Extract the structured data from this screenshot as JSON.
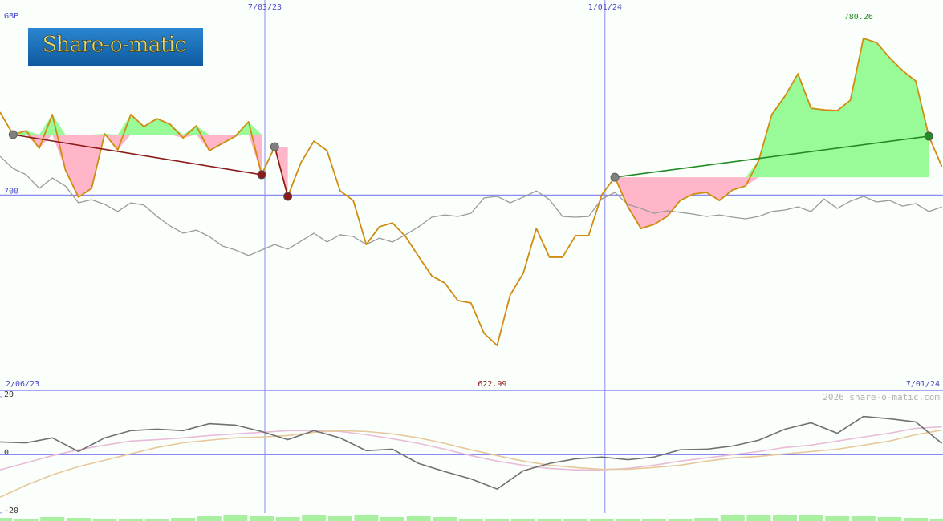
{
  "logo": "Share-o-matic",
  "credit": "2026 share-o-matic.com",
  "chart_data": [
    {
      "type": "line",
      "ylabel": "GBP",
      "categories": [
        "2/06/23",
        null,
        null,
        null,
        null,
        null,
        null,
        null,
        null,
        null,
        null,
        null,
        null,
        null,
        null,
        null,
        null,
        null,
        null,
        null,
        "7/03/23",
        null,
        null,
        null,
        null,
        null,
        null,
        null,
        null,
        null,
        null,
        null,
        null,
        null,
        null,
        null,
        null,
        null,
        null,
        null,
        null,
        null,
        null,
        null,
        null,
        null,
        "1/01/24",
        null,
        null,
        null,
        null,
        null,
        null,
        null,
        null,
        null,
        null,
        null,
        null,
        null,
        null,
        null,
        null,
        null,
        null,
        null,
        null,
        null,
        null,
        null,
        null,
        null,
        "7/01/24"
      ],
      "series": [
        {
          "color": "#d08c10",
          "values": [
            742.5,
            731.0,
            733.0,
            724.0,
            741.3,
            712.9,
            699.0,
            703.5,
            731.4,
            723.2,
            741.3,
            735.1,
            739.2,
            736.3,
            729.3,
            735.5,
            722.8,
            726.5,
            730.2,
            737.6,
            710.5,
            724.8,
            699.4,
            716.6,
            727.7,
            722.8,
            702.2,
            697.3,
            674.7,
            683.8,
            685.8,
            678.8,
            668.6,
            658.7,
            655.0,
            646.0,
            644.8,
            629.2,
            622.99,
            648.9,
            660.0,
            682.9,
            668.2,
            668.2,
            679.3,
            679.3,
            700.2,
            709.2,
            694.0,
            682.9,
            685.0,
            689.1,
            697.3,
            700.6,
            701.4,
            697.3,
            702.7,
            704.7,
            717.8,
            741.3,
            750.7,
            762.2,
            744.5,
            743.7,
            743.3,
            748.6,
            780.26,
            778.2,
            770.4,
            763.8,
            758.5,
            730.2,
            714.6
          ]
        },
        {
          "color": "#9a9a9a",
          "values": [
            719.9,
            713.7,
            710.5,
            703.5,
            708.8,
            704.7,
            696.1,
            697.7,
            695.3,
            691.6,
            696.1,
            694.9,
            689.1,
            684.2,
            680.5,
            682.1,
            678.8,
            673.9,
            671.9,
            669.0,
            671.9,
            674.7,
            672.3,
            676.4,
            680.5,
            676.0,
            679.7,
            678.8,
            674.7,
            678.0,
            676.0,
            679.7,
            683.8,
            688.7,
            689.9,
            689.1,
            690.7,
            698.6,
            699.4,
            696.1,
            699.0,
            702.2,
            697.7,
            689.1,
            688.7,
            689.1,
            698.1,
            701.4,
            695.3,
            693.2,
            690.7,
            692.0,
            691.2,
            690.3,
            689.1,
            689.9,
            688.7,
            687.9,
            689.1,
            691.6,
            692.4,
            694.0,
            691.6,
            698.1,
            693.2,
            696.9,
            699.4,
            696.5,
            697.3,
            694.4,
            695.7,
            691.6,
            694.0
          ]
        }
      ],
      "ylim": [
        600,
        800
      ],
      "yticks": [
        700
      ],
      "trades": [
        {
          "entry": 1,
          "exit": 20,
          "color": "#8b1a1a"
        },
        {
          "entry": 21,
          "exit": 22,
          "color": "#8b1a1a"
        },
        {
          "entry": 47,
          "exit": 71,
          "color": "#228b22"
        }
      ],
      "gain_color": "#98fb98",
      "loss_color": "#ffb6c8",
      "annotations": [
        {
          "index": 66,
          "text": "780.26",
          "color": "#228b22"
        },
        {
          "index": 38,
          "text": "622.99",
          "color": "#8b1a1a"
        }
      ]
    },
    {
      "type": "line",
      "x": [
        0,
        2,
        4,
        6,
        8,
        10,
        12,
        14,
        16,
        18,
        20,
        22,
        24,
        26,
        28,
        30,
        32,
        34,
        36,
        38,
        40,
        42,
        44,
        46,
        48,
        50,
        52,
        54,
        56,
        58,
        60,
        62,
        64,
        66,
        68,
        70,
        72
      ],
      "xlim": [
        0,
        72
      ],
      "ylim": [
        -22.8,
        21.9
      ],
      "yticks": [
        -20,
        0,
        20
      ],
      "series": [
        {
          "color": "#e8bcd8",
          "values": [
            -5.2,
            -2.8,
            -0.3,
            1.7,
            3.3,
            4.7,
            5.2,
            5.8,
            6.6,
            7.2,
            7.7,
            8.3,
            8.3,
            8.0,
            6.9,
            5.5,
            3.9,
            1.9,
            -0.3,
            -2.2,
            -3.6,
            -4.7,
            -5.2,
            -5.2,
            -4.7,
            -3.6,
            -2.2,
            -1.1,
            0,
            1.1,
            2.5,
            3.3,
            4.7,
            6.1,
            7.4,
            9.1,
            9.6
          ]
        },
        {
          "color": "#e6c89a",
          "values": [
            -14.6,
            -10.5,
            -6.9,
            -4.1,
            -1.9,
            0.3,
            2.5,
            4.1,
            5.0,
            5.8,
            6.1,
            6.6,
            7.7,
            8.3,
            8.0,
            7.2,
            5.8,
            3.9,
            1.7,
            -0.3,
            -2.2,
            -3.6,
            -4.4,
            -5.0,
            -5.0,
            -4.4,
            -3.6,
            -2.2,
            -1.1,
            -0.6,
            0.3,
            1.1,
            1.9,
            3.3,
            4.7,
            6.9,
            8.5
          ]
        },
        {
          "color": "#707070",
          "values": [
            4.4,
            4.1,
            5.8,
            1.1,
            5.8,
            8.3,
            8.8,
            8.3,
            10.7,
            10.2,
            8.0,
            5.2,
            8.3,
            5.8,
            1.4,
            1.9,
            -3.0,
            -5.8,
            -8.3,
            -11.8,
            -5.5,
            -3.0,
            -1.4,
            -0.8,
            -1.7,
            -0.8,
            1.7,
            1.9,
            3.0,
            5.0,
            8.8,
            11.0,
            7.4,
            13.2,
            12.4,
            11.3,
            3.9
          ]
        }
      ]
    },
    {
      "type": "bar",
      "color": "#a8f0a0",
      "x": [
        0,
        2,
        4,
        6,
        8,
        10,
        12,
        14,
        16,
        18,
        20,
        22,
        24,
        26,
        28,
        30,
        32,
        34,
        36,
        38,
        40,
        42,
        44,
        46,
        48,
        50,
        52,
        54,
        56,
        58,
        60,
        62,
        64,
        66,
        68,
        70,
        72
      ],
      "xlim": [
        0,
        72
      ],
      "ylim": [
        0,
        50
      ],
      "values": [
        4,
        3,
        5,
        4,
        2,
        2,
        3,
        4,
        6,
        7,
        6,
        5,
        8,
        6,
        7,
        5,
        6,
        5,
        3,
        2,
        2,
        2,
        3,
        3,
        2,
        2,
        3,
        4,
        7,
        8,
        8,
        7,
        6,
        6,
        5,
        4,
        3
      ]
    }
  ]
}
